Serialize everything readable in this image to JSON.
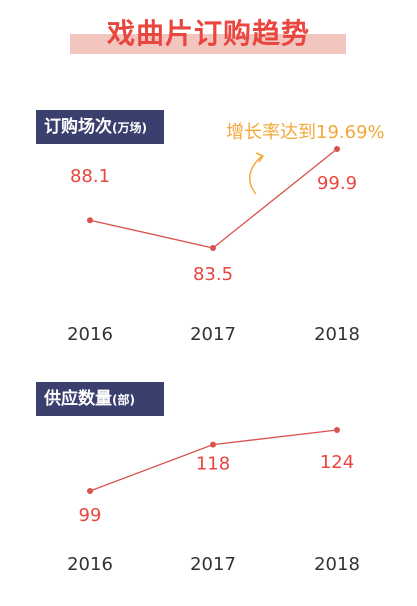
{
  "title": "戏曲片订购趋势",
  "colors": {
    "accent": "#e8463f",
    "line": "#d9534f",
    "label_bg": "#3b3f6e",
    "annotation": "#f3a93a",
    "title_band": "#f2c6bf"
  },
  "sections": {
    "orders": {
      "label": "订购场次",
      "unit": "(万场)"
    },
    "supply": {
      "label": "供应数量",
      "unit": "(部)"
    }
  },
  "annotation": "增长率达到19.69%",
  "chart_data": [
    {
      "type": "line",
      "title": "订购场次(万场)",
      "categories": [
        "2016",
        "2017",
        "2018"
      ],
      "values": [
        88.1,
        83.5,
        99.9
      ],
      "value_labels": [
        "88.1",
        "83.5",
        "99.9"
      ],
      "grid": false,
      "legend": "none"
    },
    {
      "type": "line",
      "title": "供应数量(部)",
      "categories": [
        "2016",
        "2017",
        "2018"
      ],
      "values": [
        99,
        118,
        124
      ],
      "value_labels": [
        "99",
        "118",
        "124"
      ],
      "grid": false,
      "legend": "none"
    }
  ]
}
